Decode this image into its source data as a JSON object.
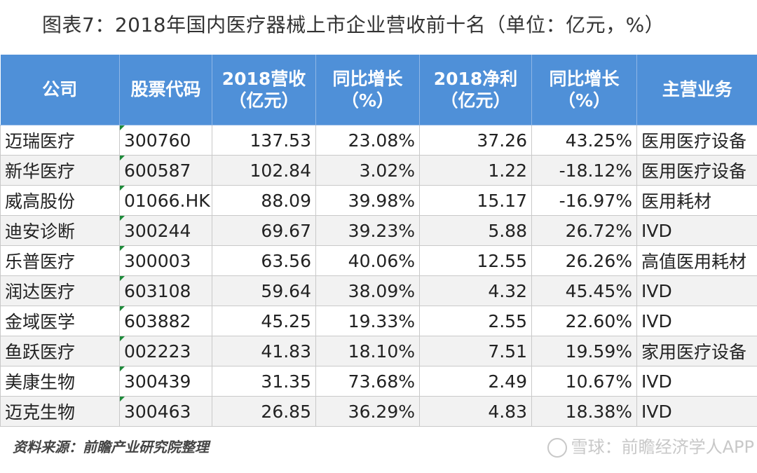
{
  "title": "图表7：2018年国内医疗器械上市企业营收前十名（单位：亿元，%）",
  "header_color": "#4f90d8",
  "chart_data": {
    "type": "table",
    "title": "图表7：2018年国内医疗器械上市企业营收前十名（单位：亿元，%）",
    "columns": [
      {
        "line1": "公司",
        "line2": ""
      },
      {
        "line1": "股票代码",
        "line2": ""
      },
      {
        "line1": "2018营收",
        "line2": "（亿元）"
      },
      {
        "line1": "同比增长",
        "line2": "（%）"
      },
      {
        "line1": "2018净利",
        "line2": "（亿元）"
      },
      {
        "line1": "同比增长",
        "line2": "（%）"
      },
      {
        "line1": "主营业务",
        "line2": ""
      }
    ],
    "rows": [
      {
        "company": "迈瑞医疗",
        "code": "300760",
        "revenue": "137.53",
        "revenue_growth": "23.08%",
        "net_profit": "37.26",
        "profit_growth": "43.25%",
        "business": "医用医疗设备"
      },
      {
        "company": "新华医疗",
        "code": "600587",
        "revenue": "102.84",
        "revenue_growth": "3.02%",
        "net_profit": "1.22",
        "profit_growth": "-18.12%",
        "business": "医用医疗设备"
      },
      {
        "company": "威高股份",
        "code": "01066.HK",
        "revenue": "88.09",
        "revenue_growth": "39.98%",
        "net_profit": "15.17",
        "profit_growth": "-16.97%",
        "business": "医用耗材"
      },
      {
        "company": "迪安诊断",
        "code": "300244",
        "revenue": "69.67",
        "revenue_growth": "39.23%",
        "net_profit": "5.88",
        "profit_growth": "26.72%",
        "business": "IVD"
      },
      {
        "company": "乐普医疗",
        "code": "300003",
        "revenue": "63.56",
        "revenue_growth": "40.06%",
        "net_profit": "12.55",
        "profit_growth": "26.26%",
        "business": "高值医用耗材"
      },
      {
        "company": "润达医疗",
        "code": "603108",
        "revenue": "59.64",
        "revenue_growth": "38.09%",
        "net_profit": "4.32",
        "profit_growth": "45.45%",
        "business": "IVD"
      },
      {
        "company": "金域医学",
        "code": "603882",
        "revenue": "45.25",
        "revenue_growth": "19.33%",
        "net_profit": "2.55",
        "profit_growth": "22.60%",
        "business": "IVD"
      },
      {
        "company": "鱼跃医疗",
        "code": "002223",
        "revenue": "41.83",
        "revenue_growth": "18.10%",
        "net_profit": "7.51",
        "profit_growth": "19.59%",
        "business": "家用医疗设备"
      },
      {
        "company": "美康生物",
        "code": "300439",
        "revenue": "31.35",
        "revenue_growth": "73.68%",
        "net_profit": "2.49",
        "profit_growth": "10.67%",
        "business": "IVD"
      },
      {
        "company": "迈克生物",
        "code": "300463",
        "revenue": "26.85",
        "revenue_growth": "36.29%",
        "net_profit": "4.83",
        "profit_growth": "18.38%",
        "business": "IVD"
      }
    ]
  },
  "source": "资料来源：前瞻产业研究院整理",
  "watermark": "雪球：前瞻经济学人APP"
}
